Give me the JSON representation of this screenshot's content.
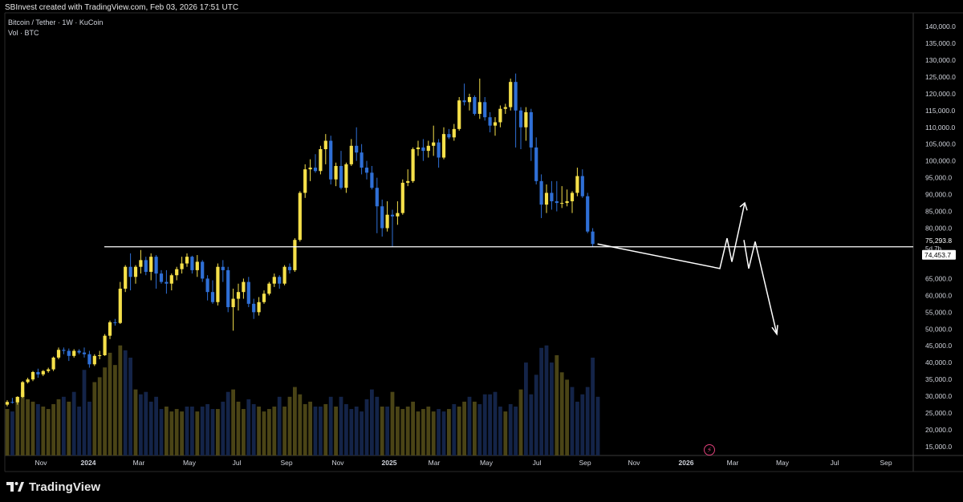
{
  "header": {
    "credit": "SBInvest created with TradingView.com, Feb 03, 2026 17:51 UTC"
  },
  "legend": {
    "symbol": "Bitcoin / Tether · 1W · KuCoin",
    "volume": "Vol · BTC"
  },
  "footer": {
    "brand": "TradingView",
    "logo_icon": "tradingview-logo-icon"
  },
  "colors": {
    "background": "#000000",
    "up": "#f5e04a",
    "down": "#2f6fd6",
    "up_volume": "#4a4416",
    "down_volume": "#142448",
    "line": "#ffffff",
    "price_badge_bg": "#ffffff",
    "price_badge_text": "#000000"
  },
  "price_scale": {
    "labels": [
      "140,000.0",
      "135,000.0",
      "130,000.0",
      "125,000.0",
      "120,000.0",
      "115,000.0",
      "110,000.0",
      "105,000.0",
      "100,000.0",
      "95,000.0",
      "90,000.0",
      "85,000.0",
      "80,000.0",
      "75,293.8",
      "5d 7h",
      "74,453.7",
      "65,000.0",
      "60,000.0",
      "55,000.0",
      "50,000.0",
      "45,000.0",
      "40,000.0",
      "35,000.0",
      "30,000.0",
      "25,000.0",
      "20,000.0",
      "15,000.0"
    ],
    "range": [
      12000,
      144000
    ]
  },
  "time_axis": {
    "labels": [
      "Nov",
      "2024",
      "Mar",
      "May",
      "Jul",
      "Sep",
      "Nov",
      "2025",
      "Mar",
      "May",
      "Jul",
      "Sep",
      "Nov",
      "2026",
      "Mar",
      "May",
      "Jul",
      "Sep"
    ]
  },
  "chart_data": {
    "type": "candlestick",
    "title": "Bitcoin / Tether · 1W · KuCoin",
    "interval": "1W",
    "y_scale": "linear",
    "ylim": [
      12000,
      144000
    ],
    "support_level": 74453.7,
    "last_price": 75293.8,
    "countdown": "5d 7h",
    "candles": [
      [
        27500,
        28800,
        27000,
        28300
      ],
      [
        28300,
        29500,
        27800,
        28200
      ],
      [
        28200,
        30000,
        27500,
        29800
      ],
      [
        29800,
        34500,
        29500,
        34200
      ],
      [
        34200,
        35500,
        33800,
        35000
      ],
      [
        35000,
        37500,
        34500,
        37200
      ],
      [
        37200,
        38200,
        35500,
        36500
      ],
      [
        36500,
        37800,
        36000,
        37500
      ],
      [
        37500,
        38500,
        37000,
        38000
      ],
      [
        38000,
        41800,
        37500,
        41500
      ],
      [
        41500,
        44500,
        41000,
        43800
      ],
      [
        43800,
        44500,
        42500,
        43500
      ],
      [
        43500,
        44200,
        40500,
        42000
      ],
      [
        42000,
        44000,
        41500,
        43500
      ],
      [
        43500,
        44000,
        42500,
        43000
      ],
      [
        43000,
        44500,
        41500,
        42500
      ],
      [
        42500,
        43500,
        38500,
        39500
      ],
      [
        39500,
        42500,
        39000,
        42000
      ],
      [
        42000,
        43500,
        41000,
        42200
      ],
      [
        42200,
        48500,
        42000,
        48000
      ],
      [
        48000,
        52500,
        47000,
        52000
      ],
      [
        52000,
        53000,
        51000,
        51800
      ],
      [
        51800,
        64000,
        51500,
        62000
      ],
      [
        62000,
        69000,
        61000,
        68500
      ],
      [
        68500,
        72500,
        61500,
        65500
      ],
      [
        65500,
        69000,
        63500,
        68500
      ],
      [
        68500,
        73500,
        66500,
        70500
      ],
      [
        70500,
        71500,
        66000,
        67000
      ],
      [
        67000,
        72500,
        64500,
        71500
      ],
      [
        71500,
        72000,
        62000,
        66500
      ],
      [
        66500,
        67500,
        63500,
        64000
      ],
      [
        64000,
        67500,
        60500,
        63500
      ],
      [
        63500,
        66500,
        61500,
        66000
      ],
      [
        66000,
        68500,
        64500,
        67800
      ],
      [
        67800,
        71500,
        66500,
        69500
      ],
      [
        69500,
        72500,
        68500,
        71500
      ],
      [
        71500,
        71800,
        66500,
        67500
      ],
      [
        67500,
        72000,
        65500,
        70000
      ],
      [
        70000,
        70500,
        64000,
        65000
      ],
      [
        65000,
        66000,
        58500,
        61000
      ],
      [
        61000,
        64500,
        57500,
        58000
      ],
      [
        58000,
        69500,
        57000,
        68500
      ],
      [
        68500,
        70500,
        64000,
        67500
      ],
      [
        67500,
        68500,
        55000,
        56500
      ],
      [
        56500,
        62000,
        49500,
        59000
      ],
      [
        59000,
        63500,
        55500,
        61000
      ],
      [
        61000,
        65000,
        59000,
        64000
      ],
      [
        64000,
        65500,
        56500,
        57500
      ],
      [
        57500,
        59000,
        53000,
        55000
      ],
      [
        55000,
        59500,
        54000,
        58000
      ],
      [
        58000,
        61500,
        57500,
        60500
      ],
      [
        60500,
        64000,
        60000,
        63500
      ],
      [
        63500,
        66500,
        62500,
        65500
      ],
      [
        65500,
        66000,
        62000,
        63500
      ],
      [
        63500,
        69000,
        63000,
        68500
      ],
      [
        68500,
        69500,
        66500,
        67500
      ],
      [
        67500,
        77000,
        67000,
        76500
      ],
      [
        76500,
        91000,
        76000,
        90500
      ],
      [
        90500,
        99000,
        89000,
        97500
      ],
      [
        97500,
        100500,
        94000,
        98000
      ],
      [
        98000,
        102000,
        96500,
        97000
      ],
      [
        97000,
        104500,
        96000,
        103500
      ],
      [
        103500,
        108000,
        99000,
        106000
      ],
      [
        106000,
        107500,
        93000,
        94500
      ],
      [
        94500,
        99500,
        92500,
        98500
      ],
      [
        98500,
        103000,
        91500,
        92000
      ],
      [
        92000,
        99500,
        90500,
        99000
      ],
      [
        99000,
        106500,
        98500,
        104500
      ],
      [
        104500,
        110000,
        100000,
        102500
      ],
      [
        102500,
        105000,
        96000,
        98000
      ],
      [
        98000,
        100000,
        94500,
        96500
      ],
      [
        96500,
        98500,
        91500,
        92000
      ],
      [
        92000,
        95000,
        78500,
        86500
      ],
      [
        86500,
        88500,
        77500,
        80000
      ],
      [
        80000,
        88000,
        79000,
        84000
      ],
      [
        84000,
        85500,
        74500,
        83500
      ],
      [
        83500,
        88000,
        81000,
        84500
      ],
      [
        84500,
        94500,
        84000,
        93500
      ],
      [
        93500,
        97500,
        92500,
        94000
      ],
      [
        94000,
        104000,
        93500,
        103500
      ],
      [
        103500,
        106000,
        101500,
        104000
      ],
      [
        104000,
        106500,
        100000,
        103000
      ],
      [
        103000,
        106000,
        101000,
        104500
      ],
      [
        104500,
        110500,
        101500,
        105500
      ],
      [
        105500,
        106500,
        98000,
        101000
      ],
      [
        101000,
        110000,
        100500,
        108000
      ],
      [
        108000,
        109500,
        106500,
        107000
      ],
      [
        107000,
        111000,
        106000,
        109500
      ],
      [
        109500,
        119000,
        109000,
        118000
      ],
      [
        118000,
        123000,
        116500,
        117500
      ],
      [
        117500,
        120000,
        115000,
        119000
      ],
      [
        119000,
        119500,
        113500,
        114000
      ],
      [
        114000,
        124500,
        112500,
        117500
      ],
      [
        117500,
        119000,
        112000,
        113000
      ],
      [
        113000,
        114500,
        108500,
        110500
      ],
      [
        110500,
        113000,
        107500,
        111500
      ],
      [
        111500,
        116500,
        110000,
        115500
      ],
      [
        115500,
        117000,
        114000,
        116000
      ],
      [
        116000,
        124500,
        115000,
        123500
      ],
      [
        123500,
        126000,
        104000,
        115000
      ],
      [
        115000,
        116000,
        103500,
        110000
      ],
      [
        110000,
        116000,
        106000,
        114500
      ],
      [
        114500,
        115500,
        100000,
        104000
      ],
      [
        104000,
        107000,
        93000,
        94000
      ],
      [
        94000,
        96000,
        83000,
        87000
      ],
      [
        87000,
        93000,
        84500,
        90500
      ],
      [
        90500,
        94000,
        85500,
        88000
      ],
      [
        88000,
        94000,
        85000,
        87500
      ],
      [
        87500,
        92500,
        86000,
        87500
      ],
      [
        87500,
        91500,
        86500,
        88000
      ],
      [
        88000,
        91000,
        84500,
        90500
      ],
      [
        90500,
        98000,
        89500,
        95500
      ],
      [
        95500,
        97500,
        89000,
        89500
      ],
      [
        89500,
        90500,
        78500,
        79000
      ],
      [
        79000,
        80000,
        74500,
        75293.8
      ]
    ],
    "volume": [
      [
        19,
        0
      ],
      [
        18,
        1
      ],
      [
        24,
        0
      ],
      [
        26,
        0
      ],
      [
        23,
        0
      ],
      [
        22,
        0
      ],
      [
        21,
        1
      ],
      [
        20,
        0
      ],
      [
        19,
        0
      ],
      [
        21,
        0
      ],
      [
        23,
        0
      ],
      [
        24,
        1
      ],
      [
        22,
        0
      ],
      [
        26,
        1
      ],
      [
        20,
        1
      ],
      [
        35,
        1
      ],
      [
        22,
        1
      ],
      [
        30,
        0
      ],
      [
        32,
        0
      ],
      [
        36,
        0
      ],
      [
        42,
        0
      ],
      [
        37,
        0
      ],
      [
        45,
        0
      ],
      [
        43,
        1
      ],
      [
        40,
        1
      ],
      [
        27,
        0
      ],
      [
        25,
        1
      ],
      [
        26,
        1
      ],
      [
        22,
        1
      ],
      [
        24,
        1
      ],
      [
        19,
        1
      ],
      [
        20,
        0
      ],
      [
        18,
        0
      ],
      [
        19,
        0
      ],
      [
        18,
        0
      ],
      [
        20,
        1
      ],
      [
        20,
        1
      ],
      [
        18,
        0
      ],
      [
        20,
        1
      ],
      [
        21,
        1
      ],
      [
        19,
        1
      ],
      [
        19,
        0
      ],
      [
        22,
        1
      ],
      [
        26,
        1
      ],
      [
        27,
        0
      ],
      [
        22,
        0
      ],
      [
        19,
        0
      ],
      [
        23,
        1
      ],
      [
        21,
        1
      ],
      [
        20,
        0
      ],
      [
        18,
        0
      ],
      [
        19,
        0
      ],
      [
        20,
        0
      ],
      [
        24,
        1
      ],
      [
        20,
        0
      ],
      [
        24,
        0
      ],
      [
        28,
        0
      ],
      [
        25,
        0
      ],
      [
        21,
        0
      ],
      [
        22,
        0
      ],
      [
        20,
        1
      ],
      [
        20,
        1
      ],
      [
        21,
        0
      ],
      [
        24,
        1
      ],
      [
        20,
        0
      ],
      [
        24,
        1
      ],
      [
        21,
        1
      ],
      [
        19,
        1
      ],
      [
        20,
        1
      ],
      [
        18,
        1
      ],
      [
        23,
        1
      ],
      [
        27,
        1
      ],
      [
        24,
        1
      ],
      [
        20,
        0
      ],
      [
        20,
        1
      ],
      [
        26,
        0
      ],
      [
        20,
        0
      ],
      [
        19,
        0
      ],
      [
        20,
        0
      ],
      [
        22,
        0
      ],
      [
        18,
        0
      ],
      [
        19,
        0
      ],
      [
        20,
        0
      ],
      [
        18,
        0
      ],
      [
        19,
        1
      ],
      [
        18,
        1
      ],
      [
        19,
        0
      ],
      [
        21,
        1
      ],
      [
        20,
        0
      ],
      [
        22,
        0
      ],
      [
        24,
        1
      ],
      [
        22,
        0
      ],
      [
        21,
        1
      ],
      [
        25,
        1
      ],
      [
        25,
        1
      ],
      [
        26,
        1
      ],
      [
        20,
        1
      ],
      [
        18,
        0
      ],
      [
        21,
        1
      ],
      [
        20,
        1
      ],
      [
        27,
        0
      ],
      [
        38,
        1
      ],
      [
        25,
        1
      ],
      [
        33,
        1
      ],
      [
        44,
        1
      ],
      [
        45,
        1
      ],
      [
        38,
        1
      ],
      [
        41,
        0
      ],
      [
        34,
        0
      ],
      [
        31,
        0
      ],
      [
        28,
        1
      ],
      [
        22,
        1
      ],
      [
        25,
        1
      ],
      [
        28,
        1
      ],
      [
        40,
        1
      ],
      [
        24,
        1
      ]
    ],
    "projection": [
      [
        75293.8,
        "start"
      ],
      [
        68000,
        ""
      ],
      [
        77000,
        ""
      ],
      [
        70000,
        ""
      ],
      [
        80000,
        ""
      ],
      [
        78000,
        ""
      ],
      [
        85000,
        ""
      ],
      [
        75000,
        ""
      ],
      [
        68000,
        ""
      ],
      [
        75000,
        ""
      ],
      [
        48000,
        ""
      ]
    ]
  }
}
